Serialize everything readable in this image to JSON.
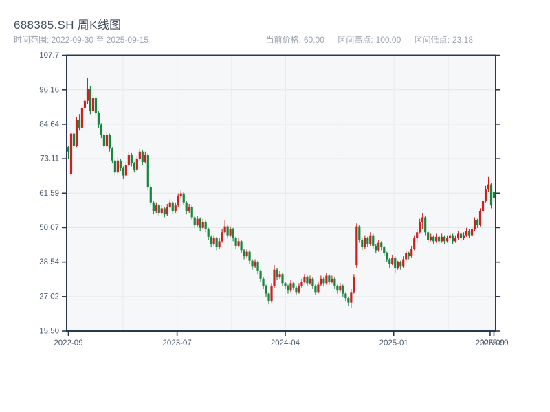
{
  "header": {
    "title": "688385.SH 周K线图",
    "subtitle": "时间范围: 2022-09-30 至 2025-09-15",
    "stats": [
      {
        "label": "当前价格:",
        "value": "60.00"
      },
      {
        "label": "区间高点:",
        "value": "100.00"
      },
      {
        "label": "区间低点:",
        "value": "23.18"
      }
    ]
  },
  "colors": {
    "up": "#cb2221",
    "down": "#15873e",
    "spine": "#2b3950",
    "grid_h": "#e3e6ea",
    "grid_v": "#e8ebee",
    "plot_bg": "#f6f7f9",
    "axis_label": "#4a5a6d",
    "title_text": "#414e60",
    "muted_text": "#9aa3ae"
  },
  "chart_data": {
    "type": "candlestick",
    "title": "688385.SH 周K线图",
    "period": "weekly",
    "date_start": "2022-09-30",
    "date_end": "2025-09-15",
    "current_price": 60.0,
    "range_high": 100.0,
    "range_low": 23.18,
    "ylim": [
      15.5,
      107.7
    ],
    "grid": true,
    "y_ticks": [
      {
        "value": 107.7,
        "label": "107.7"
      },
      {
        "value": 96.16,
        "label": "96.16"
      },
      {
        "value": 84.64,
        "label": "84.64"
      },
      {
        "value": 73.11,
        "label": "73.11"
      },
      {
        "value": 61.59,
        "label": "61.59"
      },
      {
        "value": 50.07,
        "label": "50.07"
      },
      {
        "value": 38.54,
        "label": "38.54"
      },
      {
        "value": 27.02,
        "label": "27.02"
      },
      {
        "value": 15.5,
        "label": "15.50"
      }
    ],
    "x_ticks": [
      {
        "week": 0,
        "label": "2022-09"
      },
      {
        "week": 39.6,
        "label": "2023-07"
      },
      {
        "week": 79.0,
        "label": "2024-04"
      },
      {
        "week": 118.5,
        "label": "2025-01"
      },
      {
        "week": 153.6,
        "label": "2025-09"
      },
      {
        "week": 155,
        "label": "2025-09"
      }
    ],
    "v_gridline_weeks": [
      19.9,
      39.6,
      59.4,
      79.1,
      98.9,
      118.6,
      138.4
    ],
    "ohlc_format": [
      "open",
      "high",
      "low",
      "close"
    ],
    "up_means": "close >= open (red)",
    "ohlc": [
      [
        77.0,
        77.5,
        73.0,
        75.5
      ],
      [
        68.0,
        82.5,
        67.0,
        81.5
      ],
      [
        81.5,
        82.0,
        76.5,
        77.5
      ],
      [
        77.5,
        87.0,
        77.0,
        86.0
      ],
      [
        86.0,
        88.0,
        82.5,
        83.5
      ],
      [
        83.5,
        91.0,
        83.0,
        90.0
      ],
      [
        90.0,
        93.5,
        89.0,
        92.5
      ],
      [
        92.5,
        100.0,
        91.5,
        96.5
      ],
      [
        96.5,
        97.5,
        88.0,
        89.0
      ],
      [
        89.0,
        94.5,
        88.5,
        93.5
      ],
      [
        93.5,
        94.0,
        87.5,
        88.5
      ],
      [
        88.5,
        89.0,
        83.5,
        84.5
      ],
      [
        84.5,
        85.0,
        80.0,
        81.0
      ],
      [
        81.0,
        81.5,
        76.5,
        77.5
      ],
      [
        77.5,
        82.0,
        77.0,
        81.0
      ],
      [
        81.0,
        81.5,
        75.5,
        76.5
      ],
      [
        76.5,
        77.0,
        71.5,
        72.5
      ],
      [
        72.5,
        73.0,
        67.5,
        68.5
      ],
      [
        68.5,
        73.5,
        68.0,
        72.5
      ],
      [
        72.5,
        73.0,
        69.0,
        70.0
      ],
      [
        70.0,
        70.5,
        66.5,
        67.5
      ],
      [
        67.5,
        72.0,
        67.0,
        71.0
      ],
      [
        71.0,
        75.5,
        70.5,
        74.5
      ],
      [
        74.5,
        75.0,
        70.5,
        71.5
      ],
      [
        71.5,
        72.0,
        68.5,
        69.5
      ],
      [
        69.5,
        74.0,
        69.0,
        73.0
      ],
      [
        73.0,
        76.5,
        72.5,
        75.5
      ],
      [
        75.5,
        76.0,
        71.0,
        72.0
      ],
      [
        72.0,
        75.5,
        71.5,
        74.5
      ],
      [
        74.5,
        75.0,
        62.5,
        63.5
      ],
      [
        63.5,
        64.0,
        57.5,
        58.5
      ],
      [
        58.5,
        59.0,
        54.5,
        55.5
      ],
      [
        55.5,
        58.5,
        55.0,
        57.5
      ],
      [
        57.5,
        58.0,
        54.0,
        55.0
      ],
      [
        55.0,
        57.5,
        54.5,
        56.5
      ],
      [
        56.5,
        57.0,
        53.5,
        54.5
      ],
      [
        54.5,
        58.0,
        54.0,
        57.0
      ],
      [
        57.0,
        59.5,
        56.5,
        58.5
      ],
      [
        58.5,
        59.0,
        54.5,
        55.5
      ],
      [
        55.5,
        58.5,
        55.0,
        57.5
      ],
      [
        57.5,
        61.5,
        57.0,
        60.5
      ],
      [
        60.5,
        62.5,
        59.5,
        61.5
      ],
      [
        61.5,
        62.0,
        57.5,
        58.5
      ],
      [
        58.5,
        59.0,
        54.5,
        55.5
      ],
      [
        55.5,
        58.0,
        55.0,
        57.0
      ],
      [
        57.0,
        57.5,
        52.5,
        53.5
      ],
      [
        53.5,
        54.0,
        50.0,
        51.0
      ],
      [
        51.0,
        54.0,
        50.5,
        53.0
      ],
      [
        53.0,
        53.5,
        49.0,
        50.0
      ],
      [
        50.0,
        53.0,
        49.5,
        52.0
      ],
      [
        52.0,
        52.5,
        48.5,
        49.5
      ],
      [
        49.5,
        50.0,
        46.0,
        47.0
      ],
      [
        47.0,
        47.5,
        43.5,
        44.5
      ],
      [
        44.5,
        47.5,
        44.0,
        46.5
      ],
      [
        46.5,
        47.0,
        42.5,
        43.5
      ],
      [
        43.5,
        46.5,
        43.0,
        45.5
      ],
      [
        45.5,
        49.5,
        45.0,
        48.5
      ],
      [
        48.5,
        52.5,
        48.0,
        50.5
      ],
      [
        50.5,
        51.0,
        46.5,
        47.5
      ],
      [
        47.5,
        50.5,
        47.0,
        49.5
      ],
      [
        49.5,
        50.0,
        45.5,
        46.5
      ],
      [
        46.5,
        47.0,
        43.0,
        44.0
      ],
      [
        44.0,
        46.5,
        43.5,
        45.5
      ],
      [
        45.5,
        46.0,
        41.5,
        42.5
      ],
      [
        42.5,
        43.0,
        39.5,
        40.5
      ],
      [
        40.5,
        43.0,
        40.0,
        42.0
      ],
      [
        42.0,
        42.5,
        38.0,
        39.0
      ],
      [
        39.0,
        39.5,
        36.0,
        37.0
      ],
      [
        37.0,
        39.5,
        36.5,
        38.5
      ],
      [
        38.5,
        39.0,
        34.5,
        35.5
      ],
      [
        35.5,
        36.0,
        32.0,
        33.0
      ],
      [
        33.0,
        33.5,
        29.5,
        30.5
      ],
      [
        30.5,
        31.0,
        27.0,
        28.0
      ],
      [
        28.0,
        28.5,
        24.4,
        25.5
      ],
      [
        25.5,
        31.5,
        25.0,
        30.5
      ],
      [
        30.5,
        37.5,
        30.0,
        36.0
      ],
      [
        36.0,
        36.5,
        32.5,
        33.5
      ],
      [
        33.5,
        35.5,
        33.0,
        34.5
      ],
      [
        34.5,
        35.0,
        30.5,
        31.5
      ],
      [
        31.5,
        32.0,
        29.5,
        30.5
      ],
      [
        30.5,
        31.0,
        28.0,
        29.0
      ],
      [
        29.0,
        32.5,
        28.5,
        31.5
      ],
      [
        31.5,
        32.0,
        29.0,
        30.0
      ],
      [
        30.0,
        30.5,
        27.5,
        28.5
      ],
      [
        28.5,
        31.5,
        28.0,
        30.5
      ],
      [
        30.5,
        33.0,
        30.0,
        32.0
      ],
      [
        32.0,
        34.5,
        31.5,
        33.5
      ],
      [
        33.5,
        34.0,
        30.5,
        31.5
      ],
      [
        31.5,
        34.0,
        31.0,
        33.0
      ],
      [
        33.0,
        33.5,
        29.5,
        30.5
      ],
      [
        30.5,
        31.0,
        27.5,
        28.5
      ],
      [
        28.5,
        32.0,
        28.0,
        31.0
      ],
      [
        31.0,
        34.0,
        30.5,
        33.0
      ],
      [
        33.0,
        33.5,
        30.5,
        31.5
      ],
      [
        31.5,
        35.0,
        31.0,
        34.0
      ],
      [
        34.0,
        34.5,
        31.0,
        32.0
      ],
      [
        32.0,
        34.0,
        31.5,
        33.0
      ],
      [
        33.0,
        33.5,
        29.5,
        30.5
      ],
      [
        30.5,
        31.0,
        28.0,
        29.0
      ],
      [
        29.0,
        31.5,
        28.5,
        30.5
      ],
      [
        30.5,
        31.0,
        27.0,
        28.0
      ],
      [
        28.0,
        28.5,
        25.5,
        26.5
      ],
      [
        26.5,
        27.0,
        24.0,
        25.0
      ],
      [
        25.0,
        29.5,
        23.18,
        28.5
      ],
      [
        28.5,
        34.5,
        28.0,
        33.5
      ],
      [
        37.5,
        51.5,
        36.5,
        50.5
      ],
      [
        50.5,
        51.0,
        45.0,
        46.0
      ],
      [
        46.0,
        46.5,
        42.5,
        43.5
      ],
      [
        43.5,
        47.5,
        43.0,
        46.5
      ],
      [
        46.5,
        47.0,
        43.5,
        44.5
      ],
      [
        44.5,
        48.5,
        44.0,
        47.5
      ],
      [
        47.5,
        48.0,
        43.0,
        44.0
      ],
      [
        44.0,
        44.5,
        41.5,
        42.5
      ],
      [
        42.5,
        46.0,
        42.0,
        45.0
      ],
      [
        45.0,
        45.5,
        42.5,
        43.5
      ],
      [
        43.5,
        44.0,
        40.5,
        41.5
      ],
      [
        41.5,
        42.0,
        38.5,
        39.5
      ],
      [
        39.5,
        40.0,
        36.5,
        38.0
      ],
      [
        38.0,
        41.0,
        37.5,
        40.0
      ],
      [
        40.0,
        40.5,
        35.0,
        36.5
      ],
      [
        36.5,
        39.0,
        36.0,
        38.5
      ],
      [
        38.5,
        39.0,
        36.0,
        37.0
      ],
      [
        37.0,
        40.5,
        36.5,
        39.5
      ],
      [
        39.5,
        42.5,
        39.0,
        41.5
      ],
      [
        41.5,
        42.0,
        39.5,
        40.5
      ],
      [
        40.5,
        44.0,
        40.0,
        43.0
      ],
      [
        43.0,
        47.5,
        42.5,
        46.5
      ],
      [
        46.5,
        49.5,
        45.0,
        48.5
      ],
      [
        48.5,
        53.0,
        48.0,
        52.0
      ],
      [
        52.0,
        55.0,
        49.5,
        53.5
      ],
      [
        53.5,
        54.0,
        47.5,
        48.5
      ],
      [
        48.5,
        49.0,
        45.0,
        46.0
      ],
      [
        46.0,
        48.0,
        45.5,
        47.0
      ],
      [
        47.0,
        47.5,
        44.5,
        45.5
      ],
      [
        45.5,
        48.0,
        45.0,
        47.0
      ],
      [
        47.0,
        47.5,
        44.5,
        45.5
      ],
      [
        45.5,
        48.0,
        45.0,
        47.0
      ],
      [
        47.0,
        47.5,
        44.5,
        45.5
      ],
      [
        45.5,
        47.5,
        45.0,
        46.5
      ],
      [
        46.5,
        48.5,
        46.0,
        47.5
      ],
      [
        47.5,
        48.0,
        44.5,
        45.5
      ],
      [
        45.5,
        47.5,
        45.0,
        46.5
      ],
      [
        46.5,
        49.0,
        46.0,
        48.0
      ],
      [
        48.0,
        48.5,
        45.5,
        46.5
      ],
      [
        46.5,
        48.5,
        46.0,
        47.5
      ],
      [
        47.5,
        50.0,
        47.0,
        49.0
      ],
      [
        49.0,
        49.5,
        46.5,
        47.5
      ],
      [
        47.5,
        50.5,
        47.0,
        49.5
      ],
      [
        49.5,
        53.5,
        49.0,
        52.5
      ],
      [
        52.5,
        53.0,
        50.0,
        51.0
      ],
      [
        51.0,
        56.5,
        50.5,
        55.5
      ],
      [
        55.5,
        60.0,
        55.0,
        59.0
      ],
      [
        59.0,
        64.0,
        58.5,
        63.0
      ],
      [
        63.0,
        67.0,
        62.0,
        64.5
      ],
      [
        64.5,
        65.0,
        56.5,
        57.5
      ],
      [
        62.0,
        62.5,
        58.5,
        60.0
      ]
    ]
  }
}
